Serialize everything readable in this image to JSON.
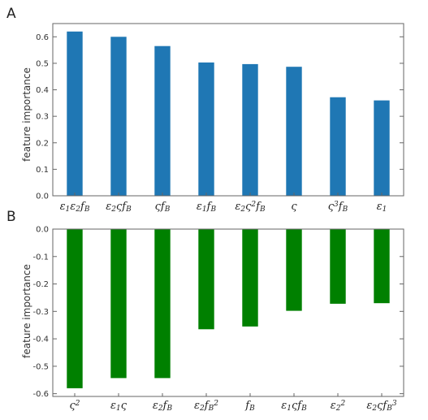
{
  "chart_data": [
    {
      "panel": "A",
      "type": "bar",
      "ylabel": "feature importance",
      "ylim": [
        0,
        0.65
      ],
      "yticks": [
        "0.0",
        "0.1",
        "0.2",
        "0.3",
        "0.4",
        "0.5",
        "0.6"
      ],
      "color": "#1f77b4",
      "categories": [
        [
          {
            "t": "ε"
          },
          {
            "t": "1",
            "k": "sub"
          },
          {
            "t": "ε"
          },
          {
            "t": "2",
            "k": "sub"
          },
          {
            "t": "f"
          },
          {
            "t": "B",
            "k": "sub"
          }
        ],
        [
          {
            "t": "ε"
          },
          {
            "t": "2",
            "k": "sub"
          },
          {
            "t": "ς"
          },
          {
            "t": "f"
          },
          {
            "t": "B",
            "k": "sub"
          }
        ],
        [
          {
            "t": "ς"
          },
          {
            "t": "f"
          },
          {
            "t": "B",
            "k": "sub"
          }
        ],
        [
          {
            "t": "ε"
          },
          {
            "t": "1",
            "k": "sub"
          },
          {
            "t": "f"
          },
          {
            "t": "B",
            "k": "sub"
          }
        ],
        [
          {
            "t": "ε"
          },
          {
            "t": "2",
            "k": "sub"
          },
          {
            "t": "ς"
          },
          {
            "t": "2",
            "k": "sup"
          },
          {
            "t": "f"
          },
          {
            "t": "B",
            "k": "sub"
          }
        ],
        [
          {
            "t": "ς"
          }
        ],
        [
          {
            "t": "ς"
          },
          {
            "t": "3",
            "k": "sup"
          },
          {
            "t": "f"
          },
          {
            "t": "B",
            "k": "sub"
          }
        ],
        [
          {
            "t": "ε"
          },
          {
            "t": "1",
            "k": "sub"
          }
        ]
      ],
      "values": [
        0.62,
        0.6,
        0.565,
        0.503,
        0.497,
        0.487,
        0.372,
        0.36
      ]
    },
    {
      "panel": "B",
      "type": "bar",
      "ylabel": "feature importance",
      "ylim": [
        -0.61,
        0
      ],
      "yticks": [
        "0.0",
        "-0.1",
        "-0.2",
        "-0.3",
        "-0.4",
        "-0.5",
        "-0.6"
      ],
      "color": "#008000",
      "categories": [
        [
          {
            "t": "ς"
          },
          {
            "t": "2",
            "k": "sup"
          }
        ],
        [
          {
            "t": "ε"
          },
          {
            "t": "1",
            "k": "sub"
          },
          {
            "t": "ς"
          }
        ],
        [
          {
            "t": "ε"
          },
          {
            "t": "2",
            "k": "sub"
          },
          {
            "t": "f"
          },
          {
            "t": "B",
            "k": "sub"
          }
        ],
        [
          {
            "t": "ε"
          },
          {
            "t": "2",
            "k": "sub"
          },
          {
            "t": "f"
          },
          {
            "t": "B",
            "k": "sub"
          },
          {
            "t": "2",
            "k": "sup"
          }
        ],
        [
          {
            "t": "f"
          },
          {
            "t": "B",
            "k": "sub"
          }
        ],
        [
          {
            "t": "ε"
          },
          {
            "t": "1",
            "k": "sub"
          },
          {
            "t": "ς"
          },
          {
            "t": "f"
          },
          {
            "t": "B",
            "k": "sub"
          }
        ],
        [
          {
            "t": "ε"
          },
          {
            "t": "2",
            "k": "sub"
          },
          {
            "t": "2",
            "k": "sup"
          }
        ],
        [
          {
            "t": "ε"
          },
          {
            "t": "2",
            "k": "sub"
          },
          {
            "t": "ς"
          },
          {
            "t": "f"
          },
          {
            "t": "B",
            "k": "sub"
          },
          {
            "t": "3",
            "k": "sup"
          }
        ]
      ],
      "values": [
        -0.58,
        -0.543,
        -0.543,
        -0.365,
        -0.355,
        -0.298,
        -0.272,
        -0.27
      ]
    }
  ]
}
